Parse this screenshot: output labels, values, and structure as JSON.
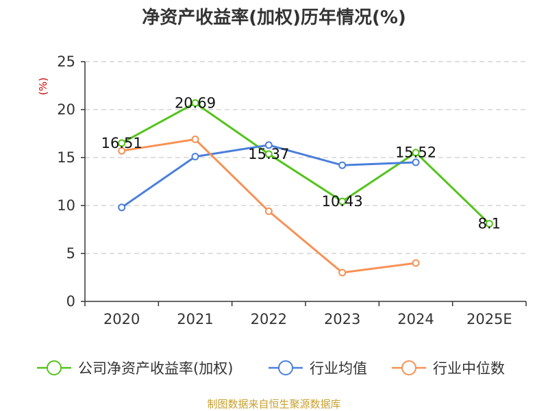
{
  "chart_data": {
    "type": "line",
    "title": "净资产收益率(加权)历年情况(%)",
    "ylabel": "(%)",
    "categories": [
      "2020",
      "2021",
      "2022",
      "2023",
      "2024",
      "2025E"
    ],
    "ylim": [
      0,
      25
    ],
    "yticks": [
      0,
      5,
      10,
      15,
      20,
      25
    ],
    "grid": true,
    "legend_position": "bottom",
    "series": [
      {
        "name": "公司净资产收益率(加权)",
        "color": "#52c41a",
        "values": [
          16.51,
          20.69,
          15.37,
          10.43,
          15.52,
          8.1
        ],
        "labels": [
          "16.51",
          "20.69",
          "15.37",
          "10.43",
          "15.52",
          "8.1"
        ]
      },
      {
        "name": "行业均值",
        "color": "#4a7fdb",
        "values": [
          9.8,
          15.1,
          16.3,
          14.2,
          14.5,
          null
        ]
      },
      {
        "name": "行业中位数",
        "color": "#f79154",
        "values": [
          15.7,
          16.9,
          9.4,
          3.0,
          4.0,
          null
        ]
      }
    ]
  },
  "source": "制图数据来自恒生聚源数据库",
  "colors": {
    "axis": "#333333",
    "grid": "#cccccc",
    "unit": "#cc0000",
    "source": "#c8a032"
  }
}
